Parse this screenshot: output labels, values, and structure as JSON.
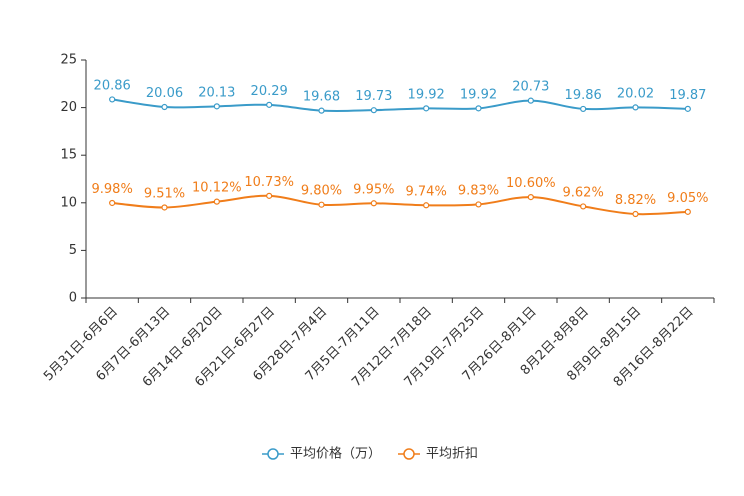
{
  "chart_data": {
    "type": "line",
    "title": "",
    "xlabel": "",
    "ylabel": "",
    "ylim": [
      0,
      25
    ],
    "yticks": [
      0,
      5,
      10,
      15,
      20,
      25
    ],
    "grid": false,
    "legend_position": "bottom-center",
    "categories": [
      "5月31日-6月6日",
      "6月7日-6月13日",
      "6月14日-6月20日",
      "6月21日-6月27日",
      "6月28日-7月4日",
      "7月5日-7月11日",
      "7月12日-7月18日",
      "7月19日-7月25日",
      "7月26日-8月1日",
      "8月2日-8月8日",
      "8月9日-8月15日",
      "8月16日-8月22日"
    ],
    "series": [
      {
        "name": "平均价格（万）",
        "color": "#3a9bc9",
        "values": [
          20.86,
          20.06,
          20.13,
          20.29,
          19.68,
          19.73,
          19.92,
          19.92,
          20.73,
          19.86,
          20.02,
          19.87
        ],
        "labels": [
          "20.86",
          "20.06",
          "20.13",
          "20.29",
          "19.68",
          "19.73",
          "19.92",
          "19.92",
          "20.73",
          "19.86",
          "20.02",
          "19.87"
        ]
      },
      {
        "name": "平均折扣",
        "color": "#f07d1a",
        "values": [
          9.98,
          9.51,
          10.12,
          10.73,
          9.8,
          9.95,
          9.74,
          9.83,
          10.6,
          9.62,
          8.82,
          9.05
        ],
        "labels": [
          "9.98%",
          "9.51%",
          "10.12%",
          "10.73%",
          "9.80%",
          "9.95%",
          "9.74%",
          "9.83%",
          "10.60%",
          "9.62%",
          "8.82%",
          "9.05%"
        ]
      }
    ]
  }
}
